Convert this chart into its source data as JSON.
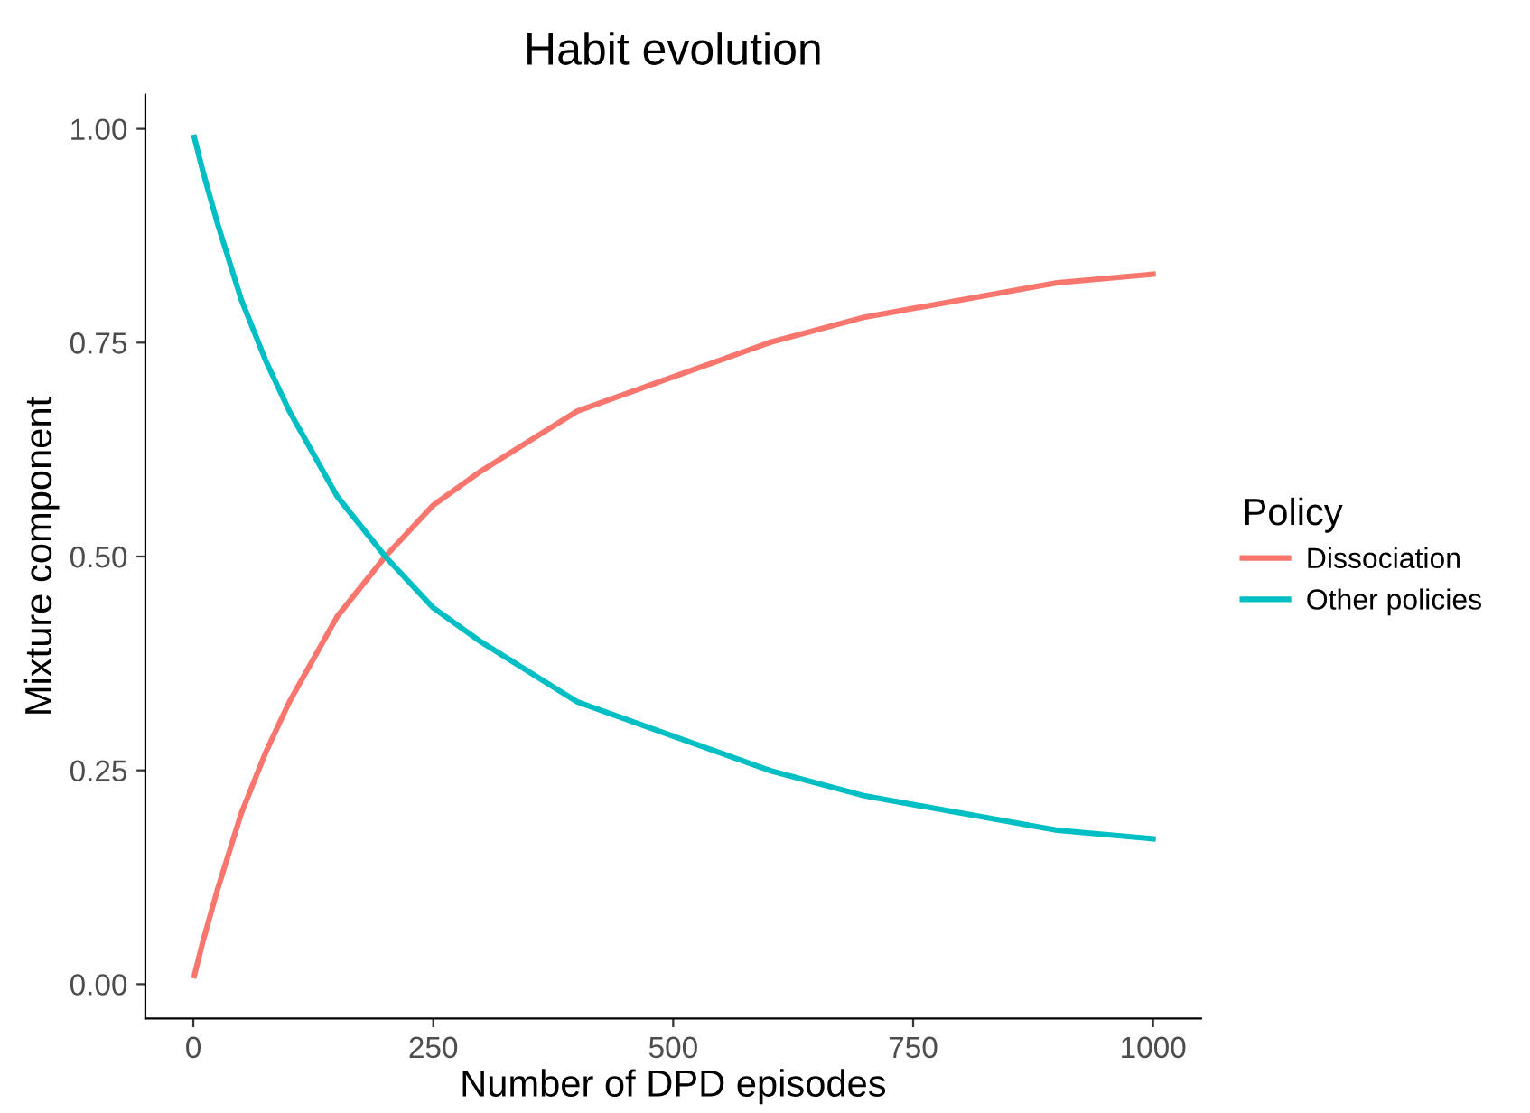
{
  "chart_data": {
    "type": "line",
    "title": "Habit evolution",
    "xlabel": "Number of DPD episodes",
    "ylabel": "Mixture component",
    "legend_title": "Policy",
    "legend": "right",
    "grid": false,
    "marker": "none",
    "line_style": "solid",
    "x": [
      1,
      10,
      25,
      50,
      75,
      100,
      150,
      200,
      250,
      300,
      400,
      500,
      600,
      700,
      800,
      900,
      1000
    ],
    "series": [
      {
        "name": "Dissociation",
        "color": "#f8766d",
        "values": [
          0.01,
          0.05,
          0.11,
          0.2,
          0.27,
          0.33,
          0.43,
          0.5,
          0.56,
          0.6,
          0.67,
          0.71,
          0.75,
          0.78,
          0.8,
          0.82,
          0.83
        ]
      },
      {
        "name": "Other policies",
        "color": "#00bfc4",
        "values": [
          0.99,
          0.95,
          0.89,
          0.8,
          0.73,
          0.67,
          0.57,
          0.5,
          0.44,
          0.4,
          0.33,
          0.29,
          0.25,
          0.22,
          0.2,
          0.18,
          0.17
        ]
      }
    ],
    "xlim": [
      -50,
      1050
    ],
    "ylim": [
      -0.04,
      1.04
    ],
    "xticks": [
      0,
      250,
      500,
      750,
      1000
    ],
    "yticks": [
      {
        "value": 0,
        "label": "0.00"
      },
      {
        "value": 0.25,
        "label": "0.25"
      },
      {
        "value": 0.5,
        "label": "0.50"
      },
      {
        "value": 0.75,
        "label": "0.75"
      },
      {
        "value": 1,
        "label": "1.00"
      }
    ]
  }
}
